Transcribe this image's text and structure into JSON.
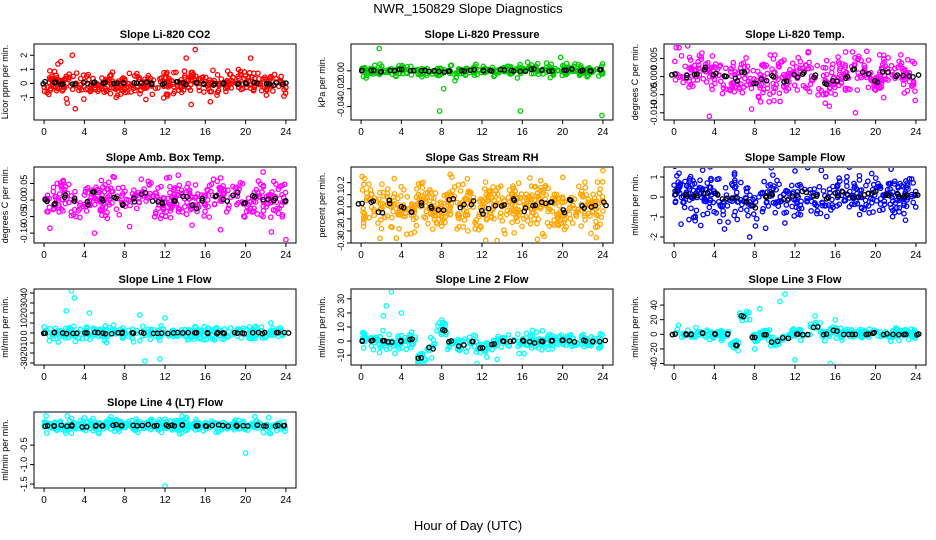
{
  "page": {
    "title": "NWR_150829  Slope Diagnostics",
    "xlabel": "Hour of Day (UTC)"
  },
  "chart_data": [
    {
      "type": "scatter",
      "title": "Slope Li-820 CO2",
      "ylabel": "Licor ppm per min.",
      "xlim": [
        -1,
        25
      ],
      "ylim": [
        -2.6,
        2.8
      ],
      "xticks": [
        "0",
        "4",
        "8",
        "12",
        "16",
        "20",
        "24"
      ],
      "yticks": [
        -1,
        0,
        1,
        2
      ],
      "ytick_labels": [
        "-1",
        "0",
        "1",
        "2"
      ],
      "color": "#ff0000",
      "n_points": 360,
      "seed": 11,
      "spread": 0.45,
      "outliers": [
        [
          2.8,
          2.0
        ],
        [
          3.1,
          -1.8
        ],
        [
          14.1,
          1.8
        ],
        [
          14.6,
          -1.5
        ],
        [
          15.0,
          2.4
        ],
        [
          16.5,
          -1.3
        ],
        [
          20.5,
          1.8
        ],
        [
          2.3,
          -1.4
        ]
      ],
      "means": [
        0.05,
        0.0,
        -0.05,
        0.0,
        0.02,
        0.0,
        0.05,
        -0.02,
        0.0,
        0.03,
        0.0,
        -0.03,
        0.0,
        0.05,
        0.0,
        0.1,
        0.0,
        -0.05,
        0.0,
        0.02,
        0.0,
        0.05,
        0.0,
        -0.05,
        0.0
      ]
    },
    {
      "type": "scatter",
      "title": "Slope Li-820 Pressure",
      "ylabel": "kPa per min.",
      "xlim": [
        -1,
        25
      ],
      "ylim": [
        -0.055,
        0.03
      ],
      "xticks": [
        "0",
        "4",
        "8",
        "12",
        "16",
        "20",
        "24"
      ],
      "yticks": [
        -0.04,
        -0.02,
        0.0
      ],
      "ytick_labels": [
        "-0.04",
        "-0.02",
        "0.00"
      ],
      "color": "#00cc00",
      "n_points": 320,
      "seed": 23,
      "spread": 0.003,
      "outliers": [
        [
          1.8,
          0.025
        ],
        [
          7.8,
          -0.045
        ],
        [
          8.2,
          -0.02
        ],
        [
          15.8,
          -0.045
        ],
        [
          19.8,
          0.015
        ],
        [
          23.9,
          -0.05
        ],
        [
          0.5,
          -0.008
        ]
      ],
      "means": [
        0.0,
        0.0,
        -0.001,
        0.0,
        0.001,
        0.0,
        0.0,
        0.0,
        -0.001,
        0.0,
        0.0,
        0.001,
        0.0,
        0.0,
        0.001,
        0.0,
        0.0,
        0.002,
        0.001,
        0.0,
        0.001,
        0.002,
        0.0,
        0.0,
        0.001
      ]
    },
    {
      "type": "scatter",
      "title": "Slope Li-820 Temp.",
      "ylabel": "degrees C per min.",
      "xlim": [
        -1,
        25
      ],
      "ylim": [
        -0.012,
        0.009
      ],
      "xticks": [
        "0",
        "4",
        "8",
        "12",
        "16",
        "20",
        "24"
      ],
      "yticks": [
        -0.01,
        -0.005,
        0.0,
        0.005
      ],
      "ytick_labels": [
        "-0.010",
        "-0.005",
        "0.000",
        "0.005"
      ],
      "color": "#ff00ff",
      "n_points": 380,
      "seed": 37,
      "spread": 0.0028,
      "outliers": [
        [
          0.2,
          0.008
        ],
        [
          0.5,
          0.008
        ],
        [
          3.5,
          -0.011
        ],
        [
          18.0,
          -0.01
        ],
        [
          22.5,
          0.006
        ]
      ],
      "means": [
        0.001,
        0.0,
        0.001,
        0.002,
        0.001,
        0.0,
        -0.001,
        0.001,
        -0.002,
        -0.001,
        0.0,
        -0.001,
        0.0,
        0.001,
        0.0,
        -0.002,
        -0.001,
        0.0,
        0.002,
        0.001,
        -0.001,
        0.001,
        0.0,
        0.0,
        0.0
      ]
    },
    {
      "type": "scatter",
      "title": "Slope Amb. Box Temp.",
      "ylabel": "degrees C per min.",
      "xlim": [
        -1,
        25
      ],
      "ylim": [
        -0.13,
        0.1
      ],
      "xticks": [
        "0",
        "4",
        "8",
        "12",
        "16",
        "20",
        "24"
      ],
      "yticks": [
        -0.1,
        -0.05,
        0.0,
        0.05
      ],
      "ytick_labels": [
        "-0.10",
        "-0.05",
        "0.00",
        "0.05"
      ],
      "color": "#ff00ff",
      "n_points": 380,
      "seed": 41,
      "spread": 0.03,
      "outliers": [
        [
          24.0,
          -0.12
        ],
        [
          5.0,
          -0.1
        ],
        [
          17.5,
          -0.09
        ]
      ],
      "means": [
        0.0,
        -0.01,
        0.01,
        0.0,
        -0.01,
        0.02,
        0.0,
        0.01,
        -0.01,
        0.0,
        0.02,
        0.0,
        -0.01,
        0.0,
        0.01,
        -0.02,
        0.0,
        0.01,
        0.0,
        0.02,
        -0.01,
        0.01,
        0.0,
        0.0,
        0.0
      ]
    },
    {
      "type": "scatter",
      "title": "Slope Gas Stream RH",
      "ylabel": "percent per min.",
      "xlim": [
        -1,
        25
      ],
      "ylim": [
        -0.3,
        0.33
      ],
      "xticks": [
        "0",
        "4",
        "8",
        "12",
        "16",
        "20",
        "24"
      ],
      "yticks": [
        -0.3,
        -0.2,
        -0.1,
        0.0,
        0.1,
        0.2
      ],
      "ytick_labels": [
        "-0.3",
        "-0.2",
        "-0.1",
        "0.0",
        "0.1",
        "0.2"
      ],
      "color": "#ffa500",
      "n_points": 520,
      "seed": 53,
      "spread": 0.1,
      "outliers": [
        [
          0.1,
          0.25
        ],
        [
          24.0,
          0.3
        ],
        [
          13.5,
          -0.28
        ],
        [
          3.5,
          -0.26
        ],
        [
          17.5,
          -0.27
        ]
      ],
      "means": [
        0.02,
        0.05,
        -0.03,
        0.04,
        0.0,
        -0.05,
        0.03,
        0.0,
        -0.02,
        0.05,
        0.0,
        0.03,
        -0.04,
        0.0,
        0.02,
        0.05,
        -0.02,
        0.0,
        0.04,
        0.02,
        -0.03,
        0.05,
        0.0,
        0.0,
        0.02
      ]
    },
    {
      "type": "scatter",
      "title": "Slope Sample Flow",
      "ylabel": "ml/min per min.",
      "xlim": [
        -1,
        25
      ],
      "ylim": [
        -2.3,
        1.5
      ],
      "xticks": [
        "0",
        "4",
        "8",
        "12",
        "16",
        "20",
        "24"
      ],
      "yticks": [
        -2,
        -1,
        0,
        1
      ],
      "ytick_labels": [
        "-2",
        "-1",
        "0",
        "1"
      ],
      "color": "#0000ff",
      "n_points": 400,
      "seed": 67,
      "spread": 0.5,
      "outliers": [
        [
          7.5,
          -2.0
        ],
        [
          6.0,
          1.2
        ],
        [
          12.0,
          1.3
        ],
        [
          5.0,
          -1.6
        ],
        [
          11.0,
          -1.3
        ]
      ],
      "means": [
        0.2,
        0.1,
        0.0,
        0.2,
        0.1,
        -0.1,
        0.0,
        -0.2,
        -0.5,
        0.0,
        0.2,
        -0.1,
        0.0,
        0.2,
        0.1,
        0.0,
        0.1,
        0.2,
        0.0,
        0.1,
        0.2,
        0.0,
        0.1,
        0.0,
        0.1
      ]
    },
    {
      "type": "scatter",
      "title": "Slope Line 1 Flow",
      "ylabel": "ml/min per min.",
      "xlim": [
        -1,
        25
      ],
      "ylim": [
        -32,
        44
      ],
      "xticks": [
        "0",
        "4",
        "8",
        "12",
        "16",
        "20",
        "24"
      ],
      "yticks": [
        -30,
        -20,
        -10,
        0,
        10,
        20,
        30,
        40
      ],
      "ytick_labels": [
        "-30",
        "-20",
        "-10",
        "0",
        "10",
        "20",
        "30",
        "40"
      ],
      "color": "#00ffff",
      "n_points": 300,
      "seed": 71,
      "spread": 3.5,
      "outliers": [
        [
          2.7,
          42
        ],
        [
          3.0,
          35
        ],
        [
          2.2,
          22
        ],
        [
          4.5,
          20
        ],
        [
          10.0,
          -28
        ],
        [
          11.5,
          -26
        ],
        [
          12.0,
          15
        ],
        [
          9.5,
          18
        ],
        [
          22.5,
          10
        ]
      ],
      "means": [
        0,
        0,
        0,
        0,
        0,
        0,
        0,
        0,
        0,
        0,
        0,
        0,
        0,
        0,
        0,
        0,
        0,
        0,
        0,
        0,
        0,
        0,
        0,
        0,
        0
      ]
    },
    {
      "type": "scatter",
      "title": "Slope Line 2 Flow",
      "ylabel": "ml/min per min.",
      "xlim": [
        -1,
        25
      ],
      "ylim": [
        -17,
        37
      ],
      "xticks": [
        "0",
        "4",
        "8",
        "12",
        "16",
        "20",
        "24"
      ],
      "yticks": [
        -10,
        0,
        10,
        20,
        30
      ],
      "ytick_labels": [
        "-10",
        "0",
        "10",
        "20",
        "30"
      ],
      "color": "#00ffff",
      "n_points": 320,
      "seed": 83,
      "spread": 3,
      "outliers": [
        [
          3.0,
          35
        ],
        [
          2.5,
          25
        ],
        [
          2.2,
          18
        ],
        [
          4.0,
          20
        ],
        [
          7.0,
          -12
        ],
        [
          11.5,
          -16
        ],
        [
          13.5,
          -13
        ],
        [
          8.0,
          15
        ]
      ],
      "means": [
        0,
        0,
        0,
        -1,
        0,
        1,
        -12,
        -5,
        8,
        0,
        -3,
        0,
        -5,
        -2,
        0,
        0,
        0,
        -1,
        0,
        0,
        0,
        0,
        0,
        0,
        0
      ]
    },
    {
      "type": "scatter",
      "title": "Slope Line 3 Flow",
      "ylabel": "ml/min per min.",
      "xlim": [
        -1,
        25
      ],
      "ylim": [
        -42,
        62
      ],
      "xticks": [
        "0",
        "4",
        "8",
        "12",
        "16",
        "20",
        "24"
      ],
      "yticks": [
        -40,
        -20,
        0,
        20,
        40
      ],
      "ytick_labels": [
        "-40",
        "-20",
        "0",
        "20",
        "40"
      ],
      "color": "#00ffff",
      "n_points": 320,
      "seed": 97,
      "spread": 4,
      "outliers": [
        [
          8.5,
          35
        ],
        [
          11.0,
          55
        ],
        [
          10.5,
          45
        ],
        [
          8.0,
          -20
        ],
        [
          12.0,
          -35
        ],
        [
          15.5,
          -40
        ],
        [
          14.0,
          25
        ],
        [
          7.5,
          20
        ],
        [
          16.0,
          20
        ]
      ],
      "means": [
        0,
        0,
        0,
        2,
        0,
        0,
        -15,
        25,
        -5,
        0,
        -10,
        -5,
        0,
        0,
        10,
        0,
        5,
        0,
        0,
        0,
        2,
        0,
        0,
        0,
        0
      ]
    },
    {
      "type": "scatter",
      "title": "Slope Line 4 (LT) Flow",
      "ylabel": "ml/min per min.",
      "xlim": [
        -1,
        25
      ],
      "ylim": [
        -1.6,
        0.35
      ],
      "xticks": [
        "0",
        "4",
        "8",
        "12",
        "16",
        "20",
        "24"
      ],
      "yticks": [
        -1.5,
        -1.0,
        -0.5
      ],
      "ytick_labels": [
        "-1.5",
        "-1.0",
        "-0.5"
      ],
      "color": "#00ffff",
      "n_points": 420,
      "seed": 101,
      "spread": 0.08,
      "outliers": [
        [
          12.0,
          -1.55
        ],
        [
          20.0,
          -0.7
        ],
        [
          0.2,
          0.25
        ],
        [
          4.0,
          0.2
        ],
        [
          2.3,
          0.25
        ]
      ],
      "means": [
        0.0,
        0.0,
        0.0,
        0.0,
        -0.02,
        0.0,
        0.0,
        0.02,
        0.0,
        0.0,
        0.02,
        0.0,
        0.0,
        0.0,
        0.02,
        0.0,
        0.0,
        0.02,
        0.0,
        0.0,
        0.0,
        0.0,
        0.0,
        0.0,
        0.0
      ]
    }
  ]
}
